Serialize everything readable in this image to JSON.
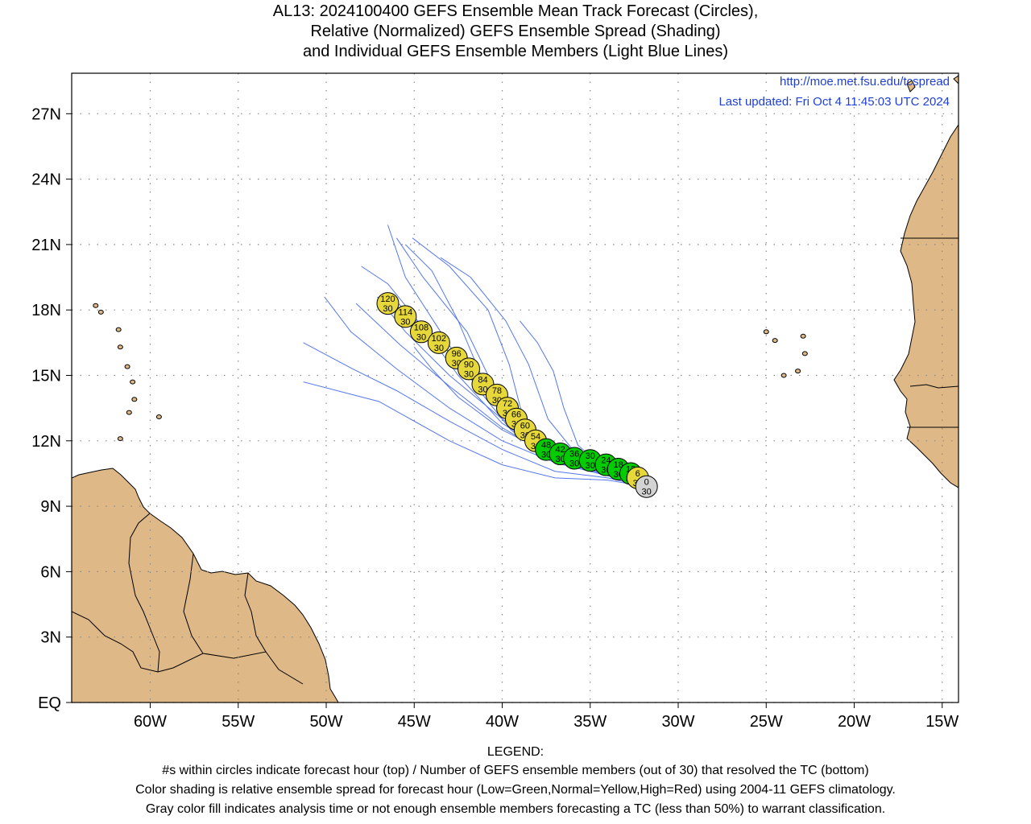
{
  "title": {
    "line1": "AL13: 2024100400 GEFS Ensemble Mean Track Forecast (Circles),",
    "line2": "Relative (Normalized) GEFS Ensemble Spread (Shading)",
    "line3": "and Individual GEFS Ensemble Members (Light Blue Lines)"
  },
  "info": {
    "url": "http://moe.met.fsu.edu/tcspread",
    "updated": "Last updated: Fri Oct  4 11:45:03 UTC 2024"
  },
  "axes": {
    "y_labels": [
      "EQ",
      "3N",
      "6N",
      "9N",
      "12N",
      "15N",
      "18N",
      "21N",
      "24N",
      "27N"
    ],
    "x_labels": [
      "60W",
      "55W",
      "50W",
      "45W",
      "40W",
      "35W",
      "30W",
      "25W",
      "20W",
      "15W"
    ]
  },
  "legend": {
    "heading": "LEGEND:",
    "line1": "#s within circles indicate forecast hour (top) / Number of GEFS ensemble members (out of 30) that resolved the TC (bottom)",
    "line2": "Color shading is relative ensemble spread for forecast hour (Low=Green,Normal=Yellow,High=Red) using 2004-11 GEFS climatology.",
    "line3": "Gray color fill indicates analysis time or not enough ensemble members forecasting a TC (less than 50%) to warrant classification."
  },
  "colors": {
    "land": "#deb887",
    "low": "#00cc00",
    "normal": "#e6d83a",
    "gray": "#d3d3d3",
    "member": "#5577ee",
    "link": "#1f3fd6"
  },
  "track": [
    {
      "hour": "0",
      "members": "30",
      "lon": -31.8,
      "lat": 9.9,
      "color": "gray"
    },
    {
      "hour": "6",
      "members": "30",
      "lon": -32.3,
      "lat": 10.3,
      "color": "normal"
    },
    {
      "hour": "12",
      "members": "30",
      "lon": -32.7,
      "lat": 10.5,
      "color": "low"
    },
    {
      "hour": "18",
      "members": "30",
      "lon": -33.4,
      "lat": 10.7,
      "color": "low"
    },
    {
      "hour": "24",
      "members": "30",
      "lon": -34.1,
      "lat": 10.9,
      "color": "low"
    },
    {
      "hour": "30",
      "members": "30",
      "lon": -35.0,
      "lat": 11.1,
      "color": "low"
    },
    {
      "hour": "36",
      "members": "30",
      "lon": -35.9,
      "lat": 11.2,
      "color": "low"
    },
    {
      "hour": "42",
      "members": "30",
      "lon": -36.7,
      "lat": 11.4,
      "color": "low"
    },
    {
      "hour": "48",
      "members": "30",
      "lon": -37.5,
      "lat": 11.6,
      "color": "low"
    },
    {
      "hour": "54",
      "members": "30",
      "lon": -38.1,
      "lat": 12.0,
      "color": "normal"
    },
    {
      "hour": "60",
      "members": "30",
      "lon": -38.7,
      "lat": 12.5,
      "color": "normal"
    },
    {
      "hour": "66",
      "members": "30",
      "lon": -39.2,
      "lat": 13.0,
      "color": "normal"
    },
    {
      "hour": "72",
      "members": "30",
      "lon": -39.7,
      "lat": 13.5,
      "color": "normal"
    },
    {
      "hour": "78",
      "members": "30",
      "lon": -40.3,
      "lat": 14.1,
      "color": "normal"
    },
    {
      "hour": "84",
      "members": "30",
      "lon": -41.1,
      "lat": 14.6,
      "color": "normal"
    },
    {
      "hour": "90",
      "members": "30",
      "lon": -41.9,
      "lat": 15.3,
      "color": "normal"
    },
    {
      "hour": "96",
      "members": "30",
      "lon": -42.6,
      "lat": 15.8,
      "color": "normal"
    },
    {
      "hour": "102",
      "members": "30",
      "lon": -43.6,
      "lat": 16.5,
      "color": "normal"
    },
    {
      "hour": "108",
      "members": "30",
      "lon": -44.6,
      "lat": 17.0,
      "color": "normal"
    },
    {
      "hour": "114",
      "members": "30",
      "lon": -45.5,
      "lat": 17.7,
      "color": "normal"
    },
    {
      "hour": "120",
      "members": "30",
      "lon": -46.5,
      "lat": 18.3,
      "color": "normal"
    }
  ],
  "members": [
    [
      [
        -31.8,
        9.9
      ],
      [
        -34,
        10.3
      ],
      [
        -37,
        10.6
      ],
      [
        -40,
        11.6
      ],
      [
        -43,
        12.9
      ],
      [
        -46,
        14.3
      ],
      [
        -48.5,
        15.3
      ],
      [
        -51.3,
        16.5
      ]
    ],
    [
      [
        -31.8,
        9.9
      ],
      [
        -34,
        10.2
      ],
      [
        -37,
        10.3
      ],
      [
        -40,
        10.9
      ],
      [
        -43,
        12
      ],
      [
        -47,
        13.8
      ],
      [
        -51.3,
        14.7
      ]
    ],
    [
      [
        -31.8,
        9.9
      ],
      [
        -34,
        10.5
      ],
      [
        -37,
        11
      ],
      [
        -39.5,
        12.5
      ],
      [
        -41.5,
        14.5
      ],
      [
        -43.5,
        17
      ],
      [
        -45.5,
        19.5
      ],
      [
        -46.5,
        21.9
      ]
    ],
    [
      [
        -31.8,
        9.9
      ],
      [
        -34,
        10.4
      ],
      [
        -37,
        11
      ],
      [
        -39,
        12.3
      ],
      [
        -40.5,
        14.5
      ],
      [
        -42,
        17
      ],
      [
        -44.5,
        19.5
      ],
      [
        -46,
        21.3
      ]
    ],
    [
      [
        -31.8,
        9.9
      ],
      [
        -34,
        10.4
      ],
      [
        -37,
        11.2
      ],
      [
        -38.8,
        13
      ],
      [
        -39.6,
        15.5
      ],
      [
        -40.8,
        18
      ],
      [
        -43,
        20
      ],
      [
        -45.1,
        21.3
      ]
    ],
    [
      [
        -31.8,
        9.9
      ],
      [
        -34,
        10.5
      ],
      [
        -36,
        11.6
      ],
      [
        -37.4,
        13
      ],
      [
        -38.5,
        15.5
      ],
      [
        -39.8,
        17.5
      ],
      [
        -41.8,
        19.5
      ],
      [
        -43.5,
        20.4
      ]
    ],
    [
      [
        -31.8,
        9.9
      ],
      [
        -34,
        10.6
      ],
      [
        -35.7,
        11.8
      ],
      [
        -36.5,
        13.5
      ],
      [
        -37.1,
        15.2
      ],
      [
        -38,
        16.5
      ],
      [
        -39,
        17.5
      ]
    ],
    [
      [
        -31.8,
        9.9
      ],
      [
        -34,
        10.5
      ],
      [
        -37,
        11.4
      ],
      [
        -40,
        13
      ],
      [
        -43,
        15
      ],
      [
        -45.5,
        17
      ],
      [
        -47.1,
        18.6
      ]
    ],
    [
      [
        -31.8,
        9.9
      ],
      [
        -34,
        10.5
      ],
      [
        -37,
        11.2
      ],
      [
        -40,
        12.6
      ],
      [
        -43,
        14.5
      ],
      [
        -45.8,
        16.4
      ],
      [
        -48.3,
        18.3
      ]
    ],
    [
      [
        -31.8,
        9.9
      ],
      [
        -34,
        10.6
      ],
      [
        -37,
        11.7
      ],
      [
        -39.5,
        13.3
      ],
      [
        -42,
        15.3
      ],
      [
        -44.5,
        17.2
      ],
      [
        -46.3,
        18.6
      ]
    ],
    [
      [
        -31.8,
        9.9
      ],
      [
        -34,
        10.4
      ],
      [
        -37,
        11
      ],
      [
        -40,
        12
      ],
      [
        -43,
        13.5
      ],
      [
        -46,
        15.3
      ],
      [
        -48.6,
        17
      ],
      [
        -50.1,
        18.6
      ]
    ],
    [
      [
        -31.8,
        9.9
      ],
      [
        -34,
        10.5
      ],
      [
        -37,
        11.3
      ],
      [
        -40,
        12.5
      ],
      [
        -42.5,
        14
      ],
      [
        -44,
        15.3
      ],
      [
        -45,
        16.3
      ]
    ],
    [
      [
        -31.8,
        9.9
      ],
      [
        -34,
        10.6
      ],
      [
        -37,
        11.5
      ],
      [
        -39.5,
        13
      ],
      [
        -41.2,
        15
      ],
      [
        -42.5,
        17.5
      ],
      [
        -44,
        19.8
      ],
      [
        -45.5,
        21
      ]
    ],
    [
      [
        -31.8,
        9.9
      ],
      [
        -34,
        10.5
      ],
      [
        -37,
        11.3
      ],
      [
        -40,
        12.8
      ],
      [
        -42.5,
        15
      ],
      [
        -44.5,
        17.2
      ],
      [
        -46.5,
        19.2
      ],
      [
        -48,
        20
      ]
    ]
  ],
  "islands": [
    [
      -61.8,
      17.1
    ],
    [
      -61.7,
      16.3
    ],
    [
      -61.3,
      15.4
    ],
    [
      -61.0,
      14.7
    ],
    [
      -61.2,
      13.3
    ],
    [
      -61.7,
      12.1
    ],
    [
      -60.9,
      13.9
    ],
    [
      -59.5,
      13.1
    ],
    [
      -62.8,
      17.9
    ],
    [
      -63.1,
      18.2
    ],
    [
      -25.0,
      17.0
    ],
    [
      -24.5,
      16.6
    ],
    [
      -23.2,
      15.2
    ],
    [
      -24.0,
      15.0
    ],
    [
      -22.8,
      16.0
    ],
    [
      -22.9,
      16.8
    ]
  ]
}
